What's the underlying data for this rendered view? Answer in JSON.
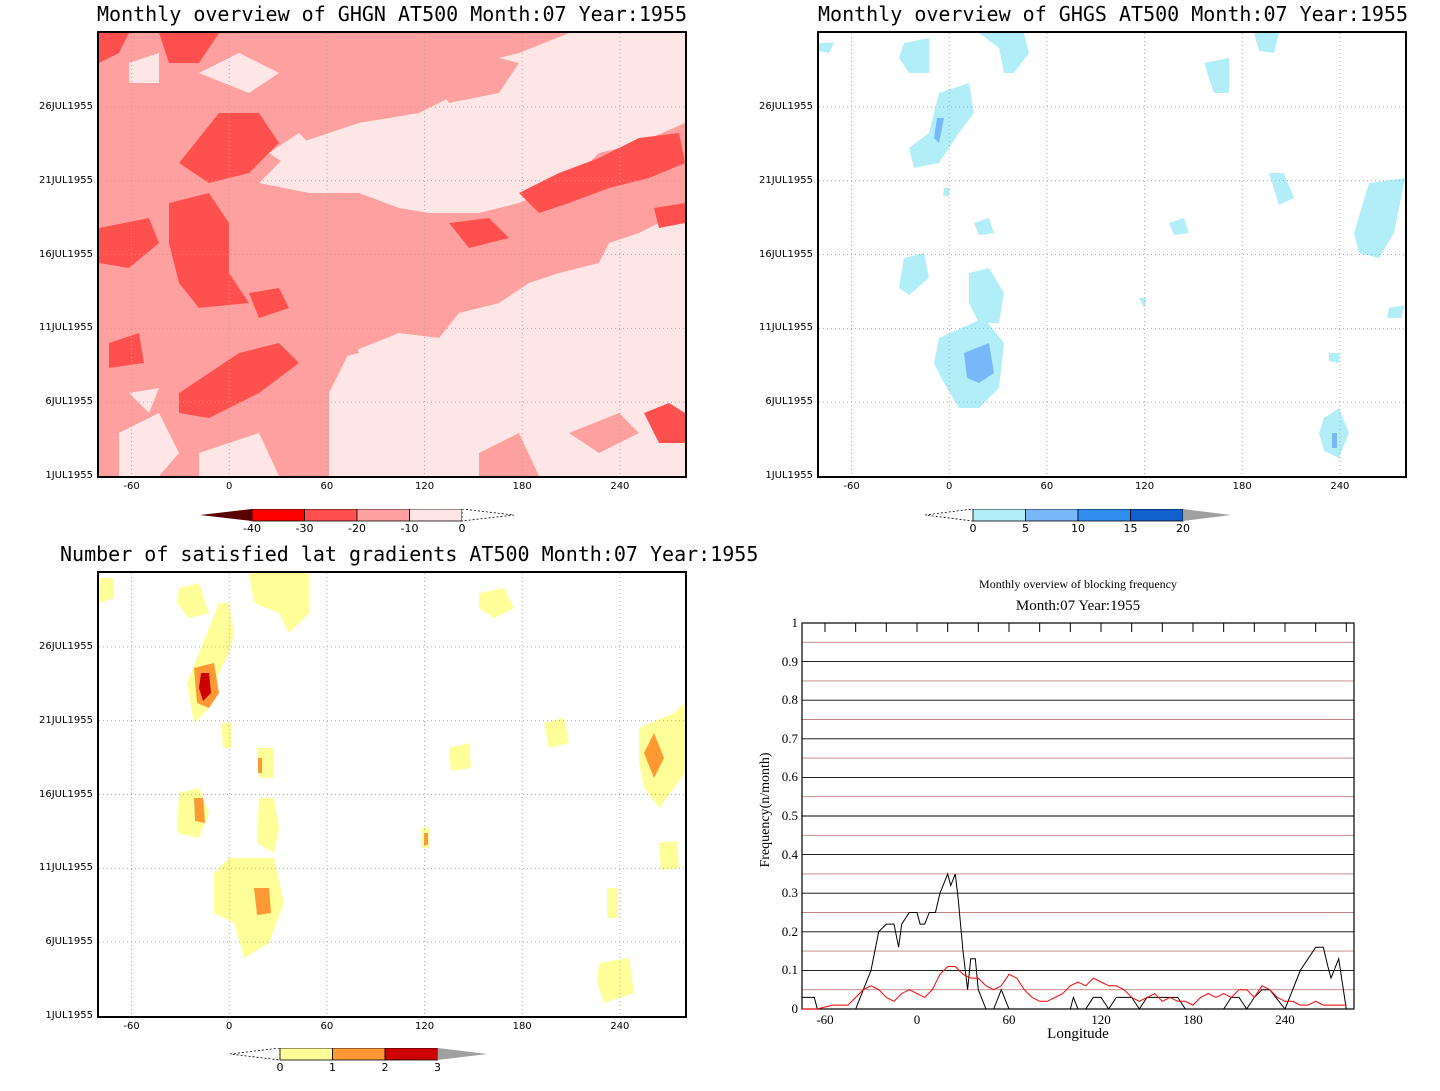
{
  "panels": [
    {
      "title": "Monthly overview of GHGN AT500 Month:07 Year:1955",
      "colorbar": {
        "labels": [
          "-40",
          "-30",
          "-20",
          "-10",
          "0"
        ],
        "colors": [
          "#5a0000",
          "#ff0000",
          "#ff5050",
          "#ffa0a0",
          "#ffe6e6"
        ],
        "open_right_white": true
      }
    },
    {
      "title": "Monthly overview of GHGS AT500 Month:07 Year:1955",
      "colorbar": {
        "labels": [
          "0",
          "5",
          "10",
          "15",
          "20"
        ],
        "colors": [
          "#b2eef8",
          "#78b8f8",
          "#2f8ef0",
          "#1060d0",
          "#a0a0a0"
        ],
        "open_left_white": true
      }
    },
    {
      "title": "Number of satisfied lat gradients AT500 Month:07 Year:1955",
      "colorbar": {
        "labels": [
          "0",
          "1",
          "2",
          "3"
        ],
        "colors": [
          "#ffff99",
          "#ff9933",
          "#cc0000",
          "#a0a0a0"
        ],
        "open_left_white": true
      }
    }
  ],
  "axes": {
    "y_ticks": [
      "26JUL1955",
      "21JUL1955",
      "16JUL1955",
      "11JUL1955",
      "6JUL1955",
      "1JUL1955"
    ],
    "x_ticks": [
      "-60",
      "0",
      "60",
      "120",
      "180",
      "240"
    ]
  },
  "line_panel": {
    "title": "Monthly overview of blocking frequency",
    "subtitle": "Month:07 Year:1955",
    "xlabel": "Longitude",
    "ylabel": "Frequency(n/month)",
    "y_ticks": [
      "0",
      "0.1",
      "0.2",
      "0.3",
      "0.4",
      "0.5",
      "0.6",
      "0.7",
      "0.8",
      "0.9",
      "1"
    ],
    "x_ticks": [
      "-60",
      "0",
      "60",
      "120",
      "180",
      "240"
    ]
  },
  "chart_data": [
    {
      "type": "heatmap",
      "title": "Monthly overview of GHGN AT500 Month:07 Year:1955",
      "x_range_deg": [
        -80,
        280
      ],
      "y_range": [
        "1JUL1955",
        "31JUL1955"
      ],
      "colorbar_levels": [
        -40,
        -30,
        -20,
        -10,
        0
      ],
      "grid": true
    },
    {
      "type": "heatmap",
      "title": "Monthly overview of GHGS AT500 Month:07 Year:1955",
      "x_range_deg": [
        -80,
        280
      ],
      "y_range": [
        "1JUL1955",
        "31JUL1955"
      ],
      "colorbar_levels": [
        0,
        5,
        10,
        15,
        20
      ],
      "grid": true
    },
    {
      "type": "heatmap",
      "title": "Number of satisfied lat gradients AT500 Month:07 Year:1955",
      "x_range_deg": [
        -80,
        280
      ],
      "y_range": [
        "1JUL1955",
        "31JUL1955"
      ],
      "colorbar_levels": [
        0,
        1,
        2,
        3
      ],
      "grid": true
    },
    {
      "type": "line",
      "title": "Monthly overview of blocking frequency",
      "subtitle": "Month:07 Year:1955",
      "xlabel": "Longitude",
      "ylabel": "Frequency(n/month)",
      "xlim": [
        -75,
        285
      ],
      "ylim": [
        0,
        1
      ],
      "series": [
        {
          "color": "#000000",
          "x": [
            -75,
            -67,
            -65,
            -40,
            -35,
            -30,
            -25,
            -20,
            -15,
            -12,
            -10,
            -5,
            0,
            2,
            5,
            8,
            12,
            15,
            20,
            22,
            25,
            27,
            30,
            33,
            35,
            38,
            40,
            45,
            50,
            55,
            60,
            100,
            102,
            105,
            110,
            115,
            120,
            125,
            130,
            135,
            140,
            145,
            150,
            155,
            160,
            165,
            170,
            175,
            200,
            205,
            210,
            215,
            220,
            225,
            230,
            240,
            245,
            250,
            255,
            260,
            265,
            268,
            270,
            275,
            280
          ],
          "y": [
            0.03,
            0.03,
            0,
            0,
            0.05,
            0.1,
            0.2,
            0.22,
            0.22,
            0.16,
            0.22,
            0.25,
            0.25,
            0.22,
            0.22,
            0.25,
            0.25,
            0.3,
            0.35,
            0.32,
            0.35,
            0.28,
            0.15,
            0.05,
            0.13,
            0.13,
            0.05,
            0,
            0,
            0.05,
            0,
            0,
            0.03,
            0,
            0,
            0.03,
            0.03,
            0,
            0.03,
            0.03,
            0.03,
            0,
            0.03,
            0.03,
            0.03,
            0.03,
            0.03,
            0,
            0,
            0.03,
            0.03,
            0,
            0.03,
            0.05,
            0.05,
            0,
            0.05,
            0.1,
            0.13,
            0.16,
            0.16,
            0.11,
            0.08,
            0.13,
            0
          ]
        },
        {
          "color": "#ff0000",
          "x": [
            -75,
            -65,
            -55,
            -45,
            -40,
            -35,
            -30,
            -25,
            -20,
            -15,
            -10,
            -5,
            0,
            5,
            10,
            15,
            20,
            25,
            30,
            35,
            40,
            45,
            50,
            55,
            60,
            65,
            70,
            75,
            80,
            85,
            90,
            95,
            100,
            105,
            110,
            115,
            120,
            125,
            130,
            135,
            140,
            145,
            150,
            155,
            160,
            165,
            170,
            175,
            180,
            185,
            190,
            195,
            200,
            205,
            210,
            215,
            220,
            225,
            230,
            235,
            240,
            245,
            250,
            255,
            260,
            265,
            270,
            275,
            280
          ],
          "y": [
            0,
            0,
            0.01,
            0.01,
            0.03,
            0.05,
            0.06,
            0.05,
            0.03,
            0.02,
            0.04,
            0.05,
            0.04,
            0.03,
            0.05,
            0.09,
            0.11,
            0.11,
            0.09,
            0.08,
            0.08,
            0.06,
            0.05,
            0.06,
            0.09,
            0.08,
            0.05,
            0.03,
            0.02,
            0.02,
            0.03,
            0.04,
            0.06,
            0.07,
            0.06,
            0.08,
            0.07,
            0.06,
            0.06,
            0.05,
            0.03,
            0.02,
            0.03,
            0.04,
            0.02,
            0.03,
            0.02,
            0.02,
            0.01,
            0.03,
            0.04,
            0.03,
            0.04,
            0.03,
            0.05,
            0.05,
            0.03,
            0.06,
            0.05,
            0.03,
            0.02,
            0.02,
            0.01,
            0.01,
            0.02,
            0.01,
            0.01,
            0.01,
            0.01
          ]
        }
      ]
    }
  ]
}
